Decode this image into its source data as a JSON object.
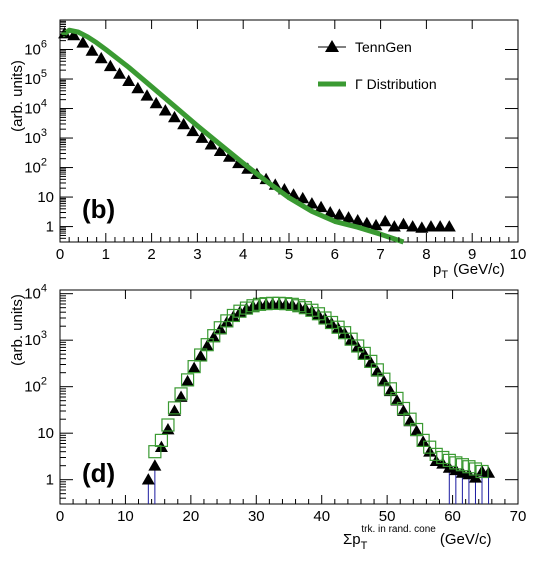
{
  "chart_data": [
    {
      "panel": "(b)",
      "type": "scatter",
      "xlabel": "p",
      "xlabel_sub": "T",
      "xlabel_unit": "(GeV/c)",
      "ylabel": "(arb. units)",
      "xlim": [
        0,
        10
      ],
      "ylim": [
        0.3,
        10000000.0
      ],
      "yscale": "log",
      "grid": false,
      "legend_position": "top-right",
      "x_ticks": [
        0,
        1,
        2,
        3,
        4,
        5,
        6,
        7,
        8,
        9,
        10
      ],
      "y_ticks": [
        {
          "value": 1,
          "label": "1",
          "exp": ""
        },
        {
          "value": 10,
          "label": "10",
          "exp": ""
        },
        {
          "value": 100,
          "label": "10",
          "exp": "2"
        },
        {
          "value": 1000,
          "label": "10",
          "exp": "3"
        },
        {
          "value": 10000,
          "label": "10",
          "exp": "4"
        },
        {
          "value": 100000,
          "label": "10",
          "exp": "5"
        },
        {
          "value": 1000000,
          "label": "10",
          "exp": "6"
        }
      ],
      "series": [
        {
          "name": "TennGen",
          "style": "markers",
          "marker": "triangle",
          "color": "#000000",
          "x": [
            0.1,
            0.3,
            0.5,
            0.7,
            0.9,
            1.1,
            1.3,
            1.5,
            1.7,
            1.9,
            2.1,
            2.3,
            2.5,
            2.7,
            2.9,
            3.1,
            3.3,
            3.5,
            3.7,
            3.9,
            4.1,
            4.3,
            4.5,
            4.7,
            4.9,
            5.1,
            5.3,
            5.5,
            5.7,
            5.9,
            6.1,
            6.3,
            6.5,
            6.7,
            6.9,
            7.1,
            7.3,
            7.5,
            7.7,
            7.9,
            8.1,
            8.3,
            8.5
          ],
          "y": [
            3500000,
            3000000,
            1700000,
            900000,
            500000,
            270000,
            150000,
            85000,
            48000,
            27000,
            15000,
            8500,
            5000,
            2900,
            1700,
            1000,
            600,
            360,
            230,
            140,
            90,
            60,
            40,
            26,
            18,
            12,
            9,
            6,
            4.5,
            3,
            2.5,
            2,
            1.6,
            1.3,
            1.1,
            1.5,
            1,
            1.2,
            1,
            0.9,
            1,
            1,
            1
          ]
        },
        {
          "name": "Γ Distribution",
          "style": "line",
          "color": "#3a9a32",
          "x": [
            0.05,
            0.2,
            0.4,
            0.6,
            0.8,
            1.0,
            1.5,
            2.0,
            2.5,
            3.0,
            3.5,
            4.0,
            4.5,
            5.0,
            5.5,
            6.0,
            6.5,
            7.0,
            7.5
          ],
          "y": [
            3000000,
            4500000,
            3900000,
            2700000,
            1700000,
            1000000,
            250000,
            55000,
            12000,
            2600,
            600,
            140,
            35,
            9.5,
            3.3,
            1.5,
            0.95,
            0.55,
            0.3
          ]
        }
      ]
    },
    {
      "panel": "(d)",
      "type": "scatter",
      "xlabel": "Σp",
      "xlabel_sub": "T",
      "xlabel_sup": "trk. in rand. cone",
      "xlabel_unit": "(GeV/c)",
      "ylabel": "(arb. units)",
      "xlim": [
        0,
        70
      ],
      "ylim": [
        0.3,
        12000
      ],
      "yscale": "log",
      "grid": false,
      "x_ticks": [
        0,
        10,
        20,
        30,
        40,
        50,
        60,
        70
      ],
      "y_ticks": [
        {
          "value": 1,
          "label": "1",
          "exp": ""
        },
        {
          "value": 10,
          "label": "10",
          "exp": ""
        },
        {
          "value": 100,
          "label": "10",
          "exp": "2"
        },
        {
          "value": 1000,
          "label": "10",
          "exp": "3"
        },
        {
          "value": 10000,
          "label": "10",
          "exp": "4"
        }
      ],
      "series": [
        {
          "name": "TennGen",
          "style": "markers",
          "marker": "triangle",
          "color": "#000000",
          "x": [
            13.5,
            14.5,
            15.5,
            16.5,
            17.5,
            18.5,
            19.5,
            20.5,
            21.5,
            22.5,
            23.5,
            24.5,
            25.5,
            26.5,
            27.5,
            28.5,
            29.5,
            30.5,
            31.5,
            32.5,
            33.5,
            34.5,
            35.5,
            36.5,
            37.5,
            38.5,
            39.5,
            40.5,
            41.5,
            42.5,
            43.5,
            44.5,
            45.5,
            46.5,
            47.5,
            48.5,
            49.5,
            50.5,
            51.5,
            52.5,
            53.5,
            54.5,
            55.5,
            56.5,
            57.5,
            58.5,
            59.5,
            60.5,
            61.5,
            62.5,
            63.5,
            64.5,
            65.5
          ],
          "y": [
            1,
            2,
            5,
            12,
            30,
            60,
            130,
            250,
            450,
            750,
            1150,
            1700,
            2400,
            3200,
            4000,
            4700,
            5300,
            5700,
            5900,
            6000,
            6000,
            5900,
            5700,
            5300,
            4800,
            4200,
            3500,
            2900,
            2300,
            1800,
            1400,
            1000,
            700,
            500,
            330,
            210,
            130,
            80,
            50,
            30,
            18,
            11,
            6.5,
            4,
            2.5,
            2.2,
            1.8,
            1.6,
            1.4,
            1.3,
            1.1,
            1.5,
            1.4
          ]
        },
        {
          "name": "Γ Distribution",
          "style": "open-squares",
          "color": "#3a9a32",
          "x": [
            14.5,
            15.5,
            16.5,
            17.5,
            18.5,
            19.5,
            20.5,
            21.5,
            22.5,
            23.5,
            24.5,
            25.5,
            26.5,
            27.5,
            28.5,
            29.5,
            30.5,
            31.5,
            32.5,
            33.5,
            34.5,
            35.5,
            36.5,
            37.5,
            38.5,
            39.5,
            40.5,
            41.5,
            42.5,
            43.5,
            44.5,
            45.5,
            46.5,
            47.5,
            48.5,
            49.5,
            50.5,
            51.5,
            52.5,
            53.5,
            54.5,
            55.5,
            56.5,
            57.5,
            58.5,
            59.5,
            60.5,
            61.5,
            62.5,
            63.5,
            64.5
          ],
          "y": [
            4,
            7,
            15,
            35,
            70,
            140,
            270,
            480,
            800,
            1250,
            1850,
            2600,
            3400,
            4200,
            4900,
            5500,
            5900,
            6100,
            6200,
            6200,
            6100,
            5900,
            5500,
            5000,
            4400,
            3700,
            3000,
            2400,
            1900,
            1450,
            1050,
            750,
            520,
            350,
            230,
            145,
            90,
            56,
            34,
            20,
            12,
            7,
            5,
            3.5,
            3,
            2.6,
            2.3,
            2.1,
            1.9,
            1.7,
            1.5
          ]
        }
      ]
    }
  ]
}
